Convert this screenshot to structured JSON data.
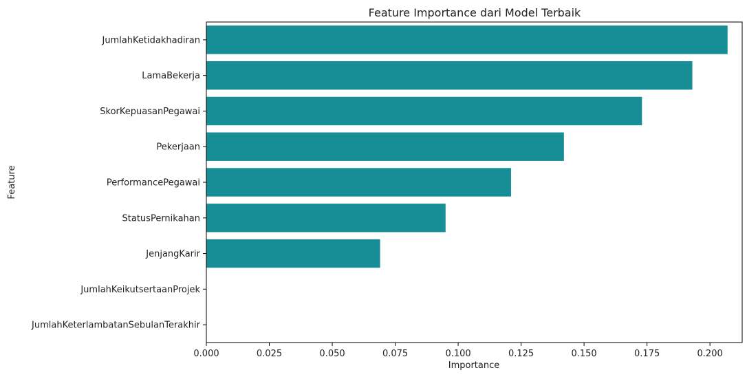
{
  "chart_data": {
    "type": "bar",
    "orientation": "horizontal",
    "title": "Feature Importance dari Model Terbaik",
    "xlabel": "Importance",
    "ylabel": "Feature",
    "categories": [
      "JumlahKetidakhadiran",
      "LamaBekerja",
      "SkorKepuasanPegawai",
      "Pekerjaan",
      "PerformancePegawai",
      "StatusPernikahan",
      "JenjangKarir",
      "JumlahKeikutsertaanProjek",
      "JumlahKeterlambatanSebulanTerakhir"
    ],
    "values": [
      0.207,
      0.193,
      0.173,
      0.142,
      0.121,
      0.095,
      0.069,
      0.0,
      0.0
    ],
    "xlim": [
      0,
      0.2128
    ],
    "xticks": [
      0.0,
      0.025,
      0.05,
      0.075,
      0.1,
      0.125,
      0.15,
      0.175,
      0.2
    ],
    "xtick_labels": [
      "0.000",
      "0.025",
      "0.050",
      "0.075",
      "0.100",
      "0.125",
      "0.150",
      "0.175",
      "0.200"
    ],
    "bar_color": "#178d96",
    "grid": false
  }
}
